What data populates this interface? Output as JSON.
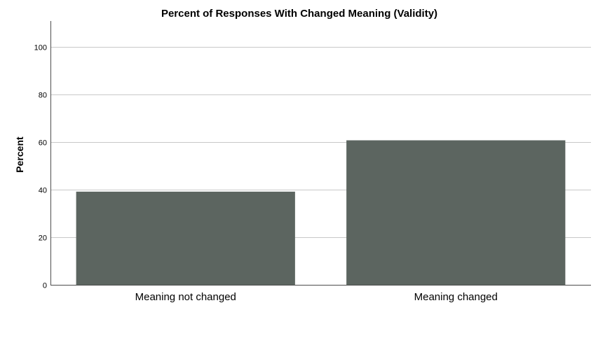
{
  "chart_data": {
    "type": "bar",
    "title": "Percent of Responses With Changed Meaning (Validity)",
    "xlabel": "",
    "ylabel": "Percent",
    "categories": [
      "Meaning not changed",
      "Meaning changed"
    ],
    "values": [
      39.2,
      60.8
    ],
    "ylim": [
      0,
      111
    ],
    "yticks": [
      0,
      20,
      40,
      60,
      80,
      100
    ],
    "grid": true,
    "legend": "none",
    "bar_color": "#5c6560"
  }
}
